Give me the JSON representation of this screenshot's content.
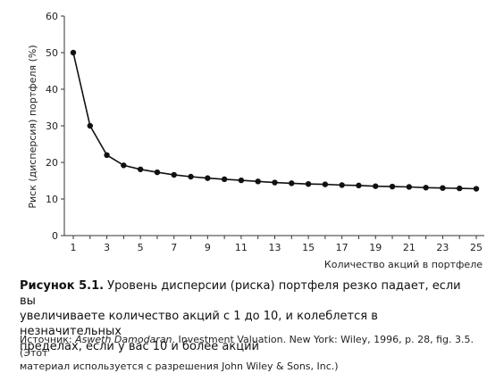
{
  "chart_data": {
    "type": "line",
    "ylabel": "Риск (дисперсия) портфеля (%)",
    "xlabel": "Количество акций в портфеле",
    "xlim": [
      1,
      25
    ],
    "ylim": [
      0,
      60
    ],
    "x_ticks": [
      1,
      3,
      5,
      7,
      9,
      11,
      13,
      15,
      17,
      19,
      21,
      23,
      25
    ],
    "y_ticks": [
      0,
      10,
      20,
      30,
      40,
      50,
      60
    ],
    "x_tick_labels": [
      "1",
      "3",
      "5",
      "7",
      "9",
      "11",
      "13",
      "15",
      "17",
      "19",
      "21",
      "23",
      "25"
    ],
    "y_tick_labels": [
      "0",
      "10",
      "20",
      "30",
      "40",
      "50",
      "60"
    ],
    "grid": false,
    "series": [
      {
        "x": [
          1,
          2,
          3,
          4,
          5,
          6,
          7,
          8,
          9,
          10,
          11,
          12,
          13,
          14,
          15,
          16,
          17,
          18,
          19,
          20,
          21,
          22,
          23,
          24,
          25
        ],
        "values": [
          50,
          30,
          22,
          19.2,
          18.1,
          17.3,
          16.6,
          16.1,
          15.7,
          15.4,
          15.1,
          14.8,
          14.5,
          14.3,
          14.1,
          14.0,
          13.8,
          13.7,
          13.5,
          13.4,
          13.3,
          13.1,
          13.0,
          12.9,
          12.8
        ],
        "color": "#111111"
      }
    ]
  },
  "caption": {
    "label": "Рисунок 5.1.",
    "line1": " Уровень дисперсии (риска) портфеля резко падает, если вы",
    "line2": "увеличиваете количество акций с 1 до 10, и колеблется в незначительных",
    "line3": "пределах, если у вас 10 и более акций"
  },
  "source": {
    "prefix": "Источник: ",
    "author": "Asweth Damodaran",
    "rest": ". Investment Valuation. New York: Wiley, 1996, p. 28, fig. 3.5. (Этот",
    "line2": "материал используется с разрешения John Wiley & Sons, Inc.)"
  }
}
